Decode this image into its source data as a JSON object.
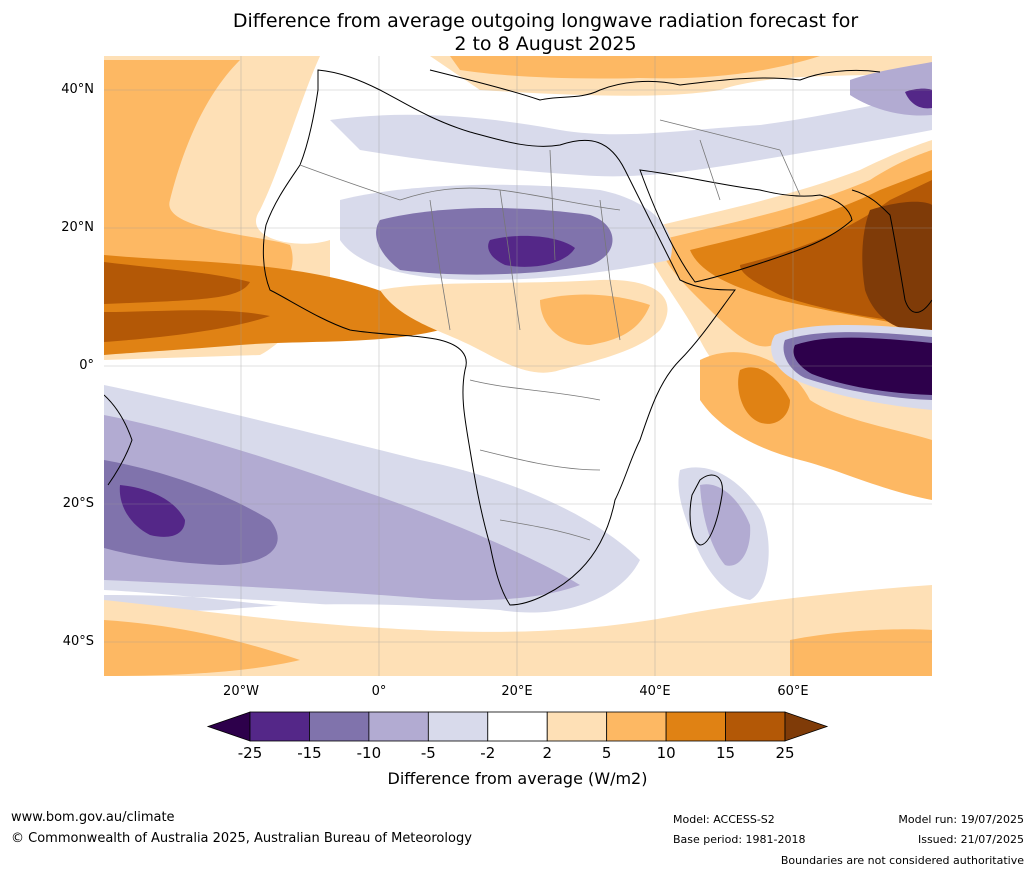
{
  "title": {
    "line1": "Difference from average outgoing longwave radiation forecast for",
    "line2": "2 to 8 August 2025"
  },
  "axes": {
    "lat_labels": [
      "40°N",
      "20°N",
      "0°",
      "20°S",
      "40°S"
    ],
    "lon_labels": [
      "20°W",
      "0°",
      "20°E",
      "40°E",
      "60°E"
    ]
  },
  "colorbar": {
    "ticks": [
      "-25",
      "-15",
      "-10",
      "-5",
      "-2",
      "2",
      "5",
      "10",
      "15",
      "25"
    ],
    "colors": [
      "#2d004b",
      "#542788",
      "#8073ac",
      "#b2abd2",
      "#d8daeb",
      "#ffffff",
      "#fee0b6",
      "#fdb863",
      "#e08214",
      "#b35806",
      "#7f3b08"
    ],
    "label": "Difference from average (W/m2)"
  },
  "footer": {
    "website": "www.bom.gov.au/climate",
    "copyright": "© Commonwealth of Australia 2025, Australian Bureau of Meteorology",
    "model": "Model: ACCESS-S2",
    "base_period": "Base period: 1981-2018",
    "model_run": "Model run: 19/07/2025",
    "issued": "Issued: 21/07/2025",
    "disclaimer": "Boundaries are not considered authoritative"
  }
}
